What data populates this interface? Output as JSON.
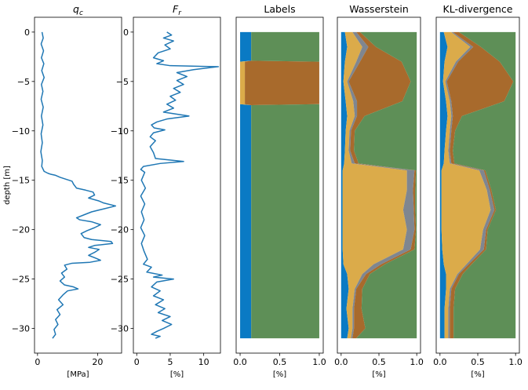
{
  "colors": {
    "line": "#1f77b4",
    "class_blue": "#0a7ac4",
    "class_green": "#5e8f57",
    "class_brown": "#a86a2c",
    "class_gold": "#dbab4a",
    "class_gray": "#7f8690"
  },
  "chart_data": [
    {
      "type": "line",
      "title": "q_c",
      "xlabel": "[MPa]",
      "ylabel": "depth [m]",
      "xlim": [
        -1,
        28
      ],
      "ylim": [
        -32.5,
        1.5
      ],
      "xticks": [
        "0",
        "20"
      ],
      "xtick_values": [
        0,
        20
      ],
      "yticks": [
        "0",
        "−5",
        "−10",
        "−15",
        "−20",
        "−25",
        "−30"
      ],
      "ytick_values": [
        0,
        -5,
        -10,
        -15,
        -20,
        -25,
        -30
      ],
      "series": [
        {
          "points": [
            [
              1.5,
              0
            ],
            [
              1.9,
              -0.6
            ],
            [
              1.2,
              -1.2
            ],
            [
              2.0,
              -1.9
            ],
            [
              1.3,
              -2.6
            ],
            [
              2.1,
              -3.2
            ],
            [
              1.4,
              -3.9
            ],
            [
              2.2,
              -4.6
            ],
            [
              1.3,
              -5.3
            ],
            [
              1.8,
              -6.0
            ],
            [
              1.2,
              -6.8
            ],
            [
              1.9,
              -7.6
            ],
            [
              1.3,
              -8.5
            ],
            [
              1.8,
              -9.4
            ],
            [
              1.2,
              -10.3
            ],
            [
              1.6,
              -11.2
            ],
            [
              1.1,
              -12.1
            ],
            [
              1.6,
              -13.0
            ],
            [
              1.4,
              -13.6
            ],
            [
              2.2,
              -14.1
            ],
            [
              3.5,
              -14.3
            ],
            [
              4.5,
              -14.4
            ],
            [
              6.0,
              -14.5
            ],
            [
              7.5,
              -14.7
            ],
            [
              9.5,
              -14.9
            ],
            [
              11.5,
              -15.1
            ],
            [
              12.0,
              -15.4
            ],
            [
              13.0,
              -15.8
            ],
            [
              16.0,
              -16.0
            ],
            [
              18.5,
              -16.2
            ],
            [
              19.0,
              -16.5
            ],
            [
              17.0,
              -16.8
            ],
            [
              20.5,
              -17.1
            ],
            [
              22.0,
              -17.3
            ],
            [
              26.0,
              -17.6
            ],
            [
              22.0,
              -17.9
            ],
            [
              18.0,
              -18.2
            ],
            [
              15.5,
              -18.5
            ],
            [
              13.0,
              -18.8
            ],
            [
              14.0,
              -19.0
            ],
            [
              18.0,
              -19.2
            ],
            [
              21.0,
              -19.5
            ],
            [
              19.0,
              -19.8
            ],
            [
              16.5,
              -20.1
            ],
            [
              14.5,
              -20.4
            ],
            [
              15.5,
              -20.8
            ],
            [
              18.0,
              -21.0
            ],
            [
              24.5,
              -21.2
            ],
            [
              25.0,
              -21.4
            ],
            [
              19.0,
              -21.6
            ],
            [
              17.0,
              -21.8
            ],
            [
              20.5,
              -22.0
            ],
            [
              19.0,
              -22.3
            ],
            [
              17.0,
              -22.6
            ],
            [
              19.5,
              -22.9
            ],
            [
              21.0,
              -23.1
            ],
            [
              17.5,
              -23.3
            ],
            [
              11.5,
              -23.4
            ],
            [
              9.0,
              -23.6
            ],
            [
              9.8,
              -24.0
            ],
            [
              8.0,
              -24.4
            ],
            [
              9.0,
              -24.8
            ],
            [
              7.5,
              -25.2
            ],
            [
              9.0,
              -25.6
            ],
            [
              12.0,
              -25.8
            ],
            [
              13.5,
              -26.0
            ],
            [
              10.0,
              -26.2
            ],
            [
              8.5,
              -26.6
            ],
            [
              7.0,
              -27.1
            ],
            [
              8.5,
              -27.6
            ],
            [
              6.5,
              -28.1
            ],
            [
              7.5,
              -28.6
            ],
            [
              6.0,
              -29.1
            ],
            [
              6.8,
              -29.6
            ],
            [
              5.5,
              -30.1
            ],
            [
              6.0,
              -30.6
            ],
            [
              5.0,
              -31.0
            ]
          ]
        }
      ]
    },
    {
      "type": "line",
      "title": "F_r",
      "xlabel": "[%]",
      "xlim": [
        -0.5,
        12.5
      ],
      "ylim": [
        -32.5,
        1.5
      ],
      "xticks": [
        "0",
        "5",
        "10"
      ],
      "xtick_values": [
        0,
        5,
        10
      ],
      "yticks": [
        "0",
        "−5",
        "−10",
        "−15",
        "−20",
        "−25",
        "−30"
      ],
      "ytick_values": [
        0,
        -5,
        -10,
        -15,
        -20,
        -25,
        -30
      ],
      "series": [
        {
          "points": [
            [
              4.5,
              0
            ],
            [
              5.2,
              -0.3
            ],
            [
              4.0,
              -0.6
            ],
            [
              5.5,
              -0.9
            ],
            [
              4.2,
              -1.3
            ],
            [
              5.0,
              -1.7
            ],
            [
              3.2,
              -2.1
            ],
            [
              2.5,
              -2.6
            ],
            [
              4.0,
              -2.9
            ],
            [
              3.0,
              -3.2
            ],
            [
              5.0,
              -3.4
            ],
            [
              12.2,
              -3.5
            ],
            [
              8.5,
              -3.8
            ],
            [
              6.0,
              -4.1
            ],
            [
              7.5,
              -4.5
            ],
            [
              6.0,
              -4.9
            ],
            [
              7.0,
              -5.3
            ],
            [
              5.5,
              -5.7
            ],
            [
              6.5,
              -6.1
            ],
            [
              5.0,
              -6.5
            ],
            [
              5.8,
              -6.9
            ],
            [
              4.5,
              -7.3
            ],
            [
              5.5,
              -7.7
            ],
            [
              4.0,
              -8.1
            ],
            [
              7.8,
              -8.5
            ],
            [
              4.5,
              -8.8
            ],
            [
              3.0,
              -9.1
            ],
            [
              2.2,
              -9.4
            ],
            [
              2.6,
              -9.7
            ],
            [
              4.2,
              -9.9
            ],
            [
              2.5,
              -10.2
            ],
            [
              2.0,
              -10.6
            ],
            [
              2.8,
              -11.0
            ],
            [
              2.0,
              -11.6
            ],
            [
              2.5,
              -12.2
            ],
            [
              2.8,
              -12.8
            ],
            [
              7.0,
              -13.1
            ],
            [
              3.5,
              -13.3
            ],
            [
              1.0,
              -13.6
            ],
            [
              0.6,
              -13.9
            ],
            [
              1.2,
              -14.2
            ],
            [
              0.7,
              -15.0
            ],
            [
              1.3,
              -15.8
            ],
            [
              0.6,
              -16.6
            ],
            [
              1.2,
              -17.4
            ],
            [
              0.7,
              -18.2
            ],
            [
              1.1,
              -19.0
            ],
            [
              0.6,
              -19.8
            ],
            [
              1.2,
              -20.6
            ],
            [
              0.7,
              -21.4
            ],
            [
              1.1,
              -22.2
            ],
            [
              1.6,
              -23.0
            ],
            [
              1.0,
              -23.5
            ],
            [
              2.2,
              -23.8
            ],
            [
              1.5,
              -24.3
            ],
            [
              3.8,
              -24.6
            ],
            [
              2.5,
              -24.8
            ],
            [
              5.5,
              -25.0
            ],
            [
              3.0,
              -25.3
            ],
            [
              2.2,
              -25.8
            ],
            [
              3.5,
              -26.2
            ],
            [
              2.5,
              -26.7
            ],
            [
              4.0,
              -27.1
            ],
            [
              2.8,
              -27.6
            ],
            [
              4.2,
              -28.0
            ],
            [
              3.2,
              -28.4
            ],
            [
              5.0,
              -28.8
            ],
            [
              3.8,
              -29.2
            ],
            [
              5.2,
              -29.6
            ],
            [
              4.0,
              -30.0
            ],
            [
              3.0,
              -30.3
            ],
            [
              2.2,
              -30.6
            ],
            [
              3.5,
              -30.8
            ],
            [
              2.8,
              -31.0
            ]
          ]
        }
      ]
    },
    {
      "type": "area",
      "title": "Labels",
      "xlabel": "[%]",
      "xlim": [
        -0.05,
        1.05
      ],
      "ylim": [
        -32.5,
        1.5
      ],
      "xticks": [
        "0.0",
        "0.5",
        "1.0"
      ],
      "xtick_values": [
        0,
        0.5,
        1
      ],
      "note_stack_order": [
        "blue",
        "gold",
        "gray",
        "brown",
        "green"
      ],
      "depths": [
        0,
        -2.9,
        -3.0,
        -7.3,
        -7.4,
        -31.0
      ],
      "series": [
        {
          "color_key": "class_blue",
          "values": [
            0.14,
            0.14,
            0.0,
            0.0,
            0.14,
            0.14
          ]
        },
        {
          "color_key": "class_gold",
          "values": [
            0.0,
            0.0,
            0.06,
            0.06,
            0.0,
            0.0
          ]
        },
        {
          "color_key": "class_gray",
          "values": [
            0.0,
            0.0,
            0.0,
            0.0,
            0.0,
            0.0
          ]
        },
        {
          "color_key": "class_brown",
          "values": [
            0.0,
            0.0,
            0.94,
            0.94,
            0.0,
            0.0
          ]
        },
        {
          "color_key": "class_green",
          "values": [
            0.86,
            0.86,
            0.0,
            0.0,
            0.86,
            0.86
          ]
        }
      ]
    },
    {
      "type": "area",
      "title": "Wasserstein",
      "xlabel": "[%]",
      "xlim": [
        -0.05,
        1.05
      ],
      "ylim": [
        -32.5,
        1.5
      ],
      "xticks": [
        "0.0",
        "0.5",
        "1.0"
      ],
      "xtick_values": [
        0,
        0.5,
        1
      ],
      "depths": [
        0,
        -1.5,
        -3.0,
        -5.0,
        -7.0,
        -8.5,
        -10.0,
        -12.0,
        -13.3,
        -14.0,
        -16.0,
        -18.0,
        -20.0,
        -22.0,
        -23.5,
        -24.5,
        -26.0,
        -28.0,
        -30.0,
        -31.0
      ],
      "series": [
        {
          "color_key": "class_blue",
          "values": [
            0.05,
            0.08,
            0.05,
            0.03,
            0.06,
            0.08,
            0.06,
            0.05,
            0.04,
            0.02,
            0.02,
            0.02,
            0.02,
            0.02,
            0.03,
            0.08,
            0.1,
            0.07,
            0.1,
            0.08
          ]
        },
        {
          "color_key": "class_gold",
          "values": [
            0.1,
            0.2,
            0.15,
            0.05,
            0.1,
            0.1,
            0.05,
            0.05,
            0.1,
            0.85,
            0.85,
            0.8,
            0.85,
            0.8,
            0.4,
            0.2,
            0.08,
            0.08,
            0.05,
            0.05
          ]
        },
        {
          "color_key": "class_gray",
          "values": [
            0.05,
            0.08,
            0.05,
            0.02,
            0.05,
            0.03,
            0.02,
            0.02,
            0.04,
            0.1,
            0.08,
            0.14,
            0.1,
            0.1,
            0.1,
            0.05,
            0.02,
            0.02,
            0.02,
            0.02
          ]
        },
        {
          "color_key": "class_brown",
          "values": [
            0.05,
            0.1,
            0.55,
            0.82,
            0.6,
            0.1,
            0.05,
            0.05,
            0.05,
            0.02,
            0.03,
            0.02,
            0.02,
            0.05,
            0.05,
            0.05,
            0.08,
            0.1,
            0.15,
            0.05
          ]
        },
        {
          "color_key": "class_green",
          "values": [
            0.75,
            0.54,
            0.2,
            0.08,
            0.19,
            0.69,
            0.82,
            0.83,
            0.77,
            0.01,
            0.02,
            0.02,
            0.01,
            0.03,
            0.42,
            0.62,
            0.72,
            0.73,
            0.68,
            0.8
          ]
        }
      ]
    },
    {
      "type": "area",
      "title": "KL-divergence",
      "xlabel": "[%]",
      "xlim": [
        -0.05,
        1.05
      ],
      "ylim": [
        -32.5,
        1.5
      ],
      "xticks": [
        "0.0",
        "0.5",
        "1.0"
      ],
      "xtick_values": [
        0,
        0.5,
        1
      ],
      "depths": [
        0,
        -1.5,
        -3.0,
        -5.0,
        -7.0,
        -8.5,
        -10.0,
        -12.0,
        -13.3,
        -14.0,
        -16.0,
        -18.0,
        -20.0,
        -22.0,
        -23.5,
        -24.5,
        -26.0,
        -28.0,
        -30.0,
        -31.0
      ],
      "series": [
        {
          "color_key": "class_blue",
          "values": [
            0.05,
            0.1,
            0.06,
            0.04,
            0.08,
            0.1,
            0.08,
            0.06,
            0.05,
            0.02,
            0.02,
            0.02,
            0.02,
            0.03,
            0.05,
            0.08,
            0.08,
            0.06,
            0.06,
            0.06
          ]
        },
        {
          "color_key": "class_gold",
          "values": [
            0.1,
            0.3,
            0.15,
            0.03,
            0.05,
            0.05,
            0.05,
            0.05,
            0.08,
            0.5,
            0.6,
            0.65,
            0.55,
            0.5,
            0.3,
            0.15,
            0.05,
            0.05,
            0.05,
            0.05
          ]
        },
        {
          "color_key": "class_gray",
          "values": [
            0.02,
            0.04,
            0.03,
            0.02,
            0.02,
            0.02,
            0.02,
            0.02,
            0.02,
            0.06,
            0.04,
            0.05,
            0.04,
            0.05,
            0.03,
            0.02,
            0.02,
            0.02,
            0.02,
            0.02
          ]
        },
        {
          "color_key": "class_brown",
          "values": [
            0.08,
            0.1,
            0.55,
            0.88,
            0.7,
            0.12,
            0.05,
            0.04,
            0.04,
            0.02,
            0.02,
            0.02,
            0.02,
            0.03,
            0.04,
            0.05,
            0.05,
            0.05,
            0.05,
            0.05
          ]
        },
        {
          "color_key": "class_green",
          "values": [
            0.75,
            0.46,
            0.21,
            0.03,
            0.15,
            0.71,
            0.8,
            0.83,
            0.81,
            0.4,
            0.32,
            0.26,
            0.37,
            0.39,
            0.58,
            0.7,
            0.8,
            0.82,
            0.82,
            0.82
          ]
        }
      ]
    }
  ]
}
